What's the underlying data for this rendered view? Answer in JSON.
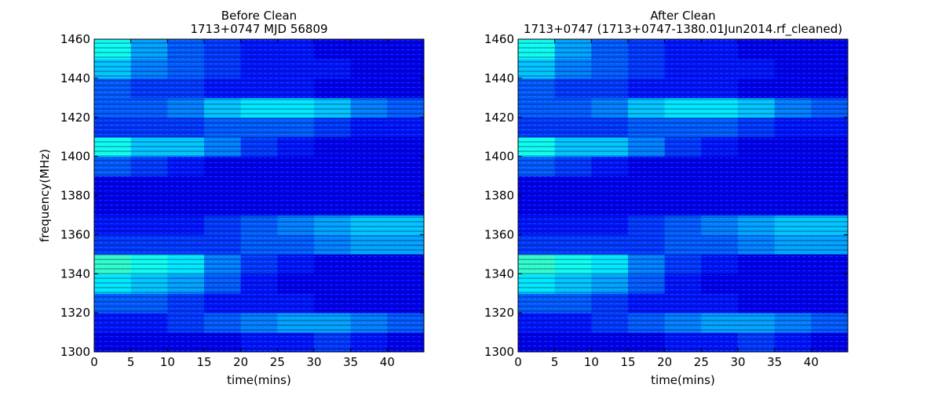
{
  "chart_data": [
    {
      "type": "heatmap",
      "title": "Before Clean",
      "subtitle": "1713+0747 MJD 56809",
      "xlabel": "time(mins)",
      "ylabel": "frequency(MHz)",
      "colormap": "jet",
      "xlim": [
        0,
        45
      ],
      "ylim": [
        1300,
        1460
      ],
      "xticks": [
        0,
        5,
        10,
        15,
        20,
        25,
        30,
        35,
        40
      ],
      "yticks": [
        1300,
        1320,
        1340,
        1360,
        1380,
        1400,
        1420,
        1440,
        1460
      ],
      "xbins": [
        0,
        5,
        10,
        15,
        20,
        25,
        30,
        35,
        40,
        45
      ],
      "ybins": [
        1300,
        1310,
        1320,
        1330,
        1340,
        1350,
        1360,
        1370,
        1380,
        1390,
        1400,
        1410,
        1420,
        1430,
        1440,
        1450,
        1460
      ],
      "values": [
        [
          0.3,
          0.3,
          0.3,
          0.3,
          0.35,
          0.35,
          0.4,
          0.35,
          0.3
        ],
        [
          0.35,
          0.35,
          0.4,
          0.45,
          0.5,
          0.55,
          0.55,
          0.5,
          0.45
        ],
        [
          0.45,
          0.45,
          0.4,
          0.35,
          0.35,
          0.35,
          0.3,
          0.3,
          0.3
        ],
        [
          0.65,
          0.6,
          0.55,
          0.45,
          0.35,
          0.3,
          0.3,
          0.3,
          0.3
        ],
        [
          0.75,
          0.7,
          0.65,
          0.5,
          0.4,
          0.35,
          0.3,
          0.3,
          0.3
        ],
        [
          0.4,
          0.4,
          0.4,
          0.4,
          0.45,
          0.45,
          0.5,
          0.55,
          0.55
        ],
        [
          0.35,
          0.35,
          0.35,
          0.4,
          0.45,
          0.5,
          0.55,
          0.6,
          0.6
        ],
        [
          0.3,
          0.3,
          0.3,
          0.3,
          0.3,
          0.3,
          0.3,
          0.3,
          0.3
        ],
        [
          0.3,
          0.3,
          0.3,
          0.3,
          0.3,
          0.3,
          0.3,
          0.3,
          0.3
        ],
        [
          0.45,
          0.4,
          0.35,
          0.3,
          0.3,
          0.3,
          0.3,
          0.3,
          0.3
        ],
        [
          0.7,
          0.6,
          0.6,
          0.5,
          0.4,
          0.35,
          0.3,
          0.3,
          0.3
        ],
        [
          0.4,
          0.4,
          0.4,
          0.45,
          0.45,
          0.45,
          0.4,
          0.35,
          0.35
        ],
        [
          0.45,
          0.45,
          0.5,
          0.6,
          0.65,
          0.65,
          0.6,
          0.5,
          0.45
        ],
        [
          0.45,
          0.4,
          0.4,
          0.35,
          0.35,
          0.35,
          0.3,
          0.3,
          0.3
        ],
        [
          0.6,
          0.5,
          0.45,
          0.4,
          0.35,
          0.35,
          0.35,
          0.3,
          0.3
        ],
        [
          0.7,
          0.55,
          0.45,
          0.4,
          0.35,
          0.35,
          0.3,
          0.3,
          0.3
        ]
      ]
    },
    {
      "type": "heatmap",
      "title": "After Clean",
      "subtitle": "1713+0747  (1713+0747-1380.01Jun2014.rf_cleaned)",
      "xlabel": "time(mins)",
      "colormap": "jet",
      "xlim": [
        0,
        45
      ],
      "ylim": [
        1300,
        1460
      ],
      "xticks": [
        0,
        5,
        10,
        15,
        20,
        25,
        30,
        35,
        40
      ],
      "yticks": [
        1300,
        1320,
        1340,
        1360,
        1380,
        1400,
        1420,
        1440,
        1460
      ],
      "xbins": [
        0,
        5,
        10,
        15,
        20,
        25,
        30,
        35,
        40,
        45
      ],
      "ybins": [
        1300,
        1310,
        1320,
        1330,
        1340,
        1350,
        1360,
        1370,
        1380,
        1390,
        1400,
        1410,
        1420,
        1430,
        1440,
        1450,
        1460
      ],
      "values": [
        [
          0.3,
          0.3,
          0.3,
          0.3,
          0.35,
          0.35,
          0.4,
          0.35,
          0.3
        ],
        [
          0.35,
          0.35,
          0.4,
          0.45,
          0.5,
          0.55,
          0.55,
          0.5,
          0.45
        ],
        [
          0.45,
          0.45,
          0.4,
          0.35,
          0.35,
          0.35,
          0.3,
          0.3,
          0.3
        ],
        [
          0.65,
          0.6,
          0.55,
          0.45,
          0.35,
          0.3,
          0.3,
          0.3,
          0.3
        ],
        [
          0.75,
          0.7,
          0.65,
          0.5,
          0.4,
          0.35,
          0.3,
          0.3,
          0.3
        ],
        [
          0.4,
          0.4,
          0.4,
          0.4,
          0.45,
          0.45,
          0.5,
          0.55,
          0.55
        ],
        [
          0.35,
          0.35,
          0.35,
          0.4,
          0.45,
          0.5,
          0.55,
          0.6,
          0.6
        ],
        [
          0.3,
          0.3,
          0.3,
          0.3,
          0.3,
          0.3,
          0.3,
          0.3,
          0.3
        ],
        [
          0.3,
          0.3,
          0.3,
          0.3,
          0.3,
          0.3,
          0.3,
          0.3,
          0.3
        ],
        [
          0.45,
          0.4,
          0.35,
          0.3,
          0.3,
          0.3,
          0.3,
          0.3,
          0.3
        ],
        [
          0.7,
          0.6,
          0.6,
          0.5,
          0.4,
          0.35,
          0.3,
          0.3,
          0.3
        ],
        [
          0.4,
          0.4,
          0.4,
          0.45,
          0.45,
          0.45,
          0.4,
          0.35,
          0.35
        ],
        [
          0.45,
          0.45,
          0.5,
          0.6,
          0.65,
          0.65,
          0.6,
          0.5,
          0.45
        ],
        [
          0.45,
          0.4,
          0.4,
          0.35,
          0.35,
          0.35,
          0.3,
          0.3,
          0.3
        ],
        [
          0.6,
          0.5,
          0.45,
          0.4,
          0.35,
          0.35,
          0.35,
          0.3,
          0.3
        ],
        [
          0.7,
          0.55,
          0.45,
          0.4,
          0.35,
          0.35,
          0.3,
          0.3,
          0.3
        ]
      ]
    }
  ]
}
